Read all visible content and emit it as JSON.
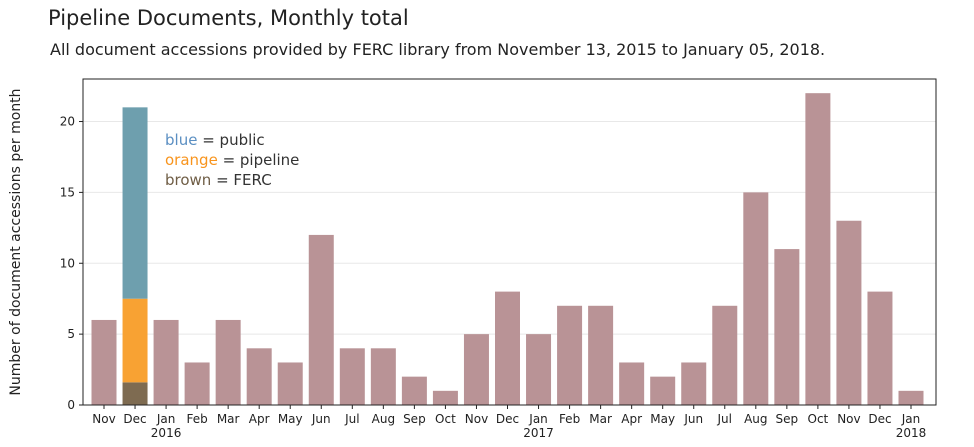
{
  "title": "Pipeline Documents, Monthly total",
  "subtitle": "All document accessions provided by FERC library from November 13, 2015 to January 05, 2018.",
  "colors": {
    "total": "#b99396",
    "public": "#6e9fae",
    "pipeline": "#f8a233",
    "ferc": "#7e6b51",
    "grid": "#e8e8e8"
  },
  "legend": [
    {
      "key": "blue",
      "label": " = public",
      "color": "#5b8fc2"
    },
    {
      "key": "orange",
      "label": " = pipeline",
      "color": "#f8941d"
    },
    {
      "key": "brown",
      "label": " = FERC",
      "color": "#6f5d45"
    }
  ],
  "chart_data": {
    "type": "bar",
    "ylabel": "Number of document accessions per month",
    "xlabel": "",
    "ylim": [
      0,
      23
    ],
    "yticks": [
      0,
      5,
      10,
      15,
      20
    ],
    "grid": "horizontal",
    "categories": [
      "Nov",
      "Dec",
      "Jan",
      "Feb",
      "Mar",
      "Apr",
      "May",
      "Jun",
      "Jul",
      "Aug",
      "Sep",
      "Oct",
      "Nov",
      "Dec",
      "Jan",
      "Feb",
      "Mar",
      "Apr",
      "May",
      "Jun",
      "Jul",
      "Aug",
      "Sep",
      "Oct",
      "Nov",
      "Dec",
      "Jan"
    ],
    "year_labels": {
      "2": "2016",
      "14": "2017",
      "26": "2018"
    },
    "values": [
      6,
      21,
      6,
      3,
      6,
      4,
      3,
      12,
      4,
      4,
      2,
      1,
      5,
      8,
      5,
      7,
      7,
      3,
      2,
      3,
      7,
      15,
      11,
      22,
      13,
      8,
      1
    ],
    "stacked_breakdown": {
      "index": 1,
      "segments": [
        {
          "name": "FERC",
          "value": 1.6
        },
        {
          "name": "pipeline",
          "value": 5.9
        },
        {
          "name": "public",
          "value": 13.5
        }
      ]
    }
  }
}
